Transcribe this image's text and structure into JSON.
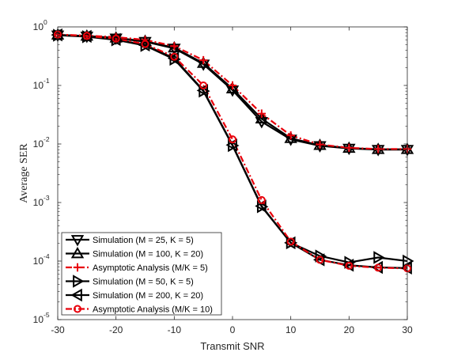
{
  "chart_data": {
    "type": "line",
    "xlabel": "Transmit SNR",
    "ylabel": "Average SER",
    "xlim": [
      -30,
      30
    ],
    "ylim": [
      1e-05,
      1
    ],
    "yscale": "log",
    "grid": false,
    "legend_position": "bottom-left",
    "x_ticks": [
      -30,
      -20,
      -10,
      0,
      10,
      20,
      30
    ],
    "x": [
      -30,
      -25,
      -20,
      -15,
      -10,
      -5,
      0,
      5,
      10,
      15,
      20,
      25,
      30
    ],
    "y_ticks": [
      {
        "value": 1e-05,
        "base": "10",
        "exp": "-5"
      },
      {
        "value": 0.0001,
        "base": "10",
        "exp": "-4"
      },
      {
        "value": 0.001,
        "base": "10",
        "exp": "-3"
      },
      {
        "value": 0.01,
        "base": "10",
        "exp": "-2"
      },
      {
        "value": 0.1,
        "base": "10",
        "exp": "-1"
      },
      {
        "value": 1,
        "base": "10",
        "exp": "0"
      }
    ],
    "series": [
      {
        "name": "Simulation (M = 25, K = 5)",
        "color": "#000000",
        "dash": "solid",
        "marker": "triangle-down",
        "values": [
          0.72,
          0.69,
          0.64,
          0.56,
          0.43,
          0.23,
          0.083,
          0.024,
          0.012,
          0.0093,
          0.0084,
          0.008,
          0.008
        ]
      },
      {
        "name": "Simulation (M = 100, K = 20)",
        "color": "#000000",
        "dash": "solid",
        "marker": "triangle-up",
        "values": [
          0.73,
          0.7,
          0.65,
          0.57,
          0.44,
          0.24,
          0.088,
          0.027,
          0.0125,
          0.0095,
          0.0085,
          0.0081,
          0.0081
        ]
      },
      {
        "name": "Asymptotic Analysis (M/K = 5)",
        "color": "#e8000b",
        "dash": "dashdot",
        "marker": "plus",
        "values": [
          0.74,
          0.71,
          0.67,
          0.6,
          0.47,
          0.27,
          0.1,
          0.033,
          0.014,
          0.0098,
          0.0086,
          0.0082,
          0.0082
        ]
      },
      {
        "name": "Simulation (M = 50, K = 5)",
        "color": "#000000",
        "dash": "solid",
        "marker": "triangle-right",
        "values": [
          0.72,
          0.68,
          0.6,
          0.48,
          0.28,
          0.08,
          0.0094,
          0.00085,
          0.000205,
          0.000122,
          9.5e-05,
          0.000115,
          0.0001
        ]
      },
      {
        "name": "Simulation (M = 200, K = 20)",
        "color": "#000000",
        "dash": "solid",
        "marker": "triangle-left",
        "values": [
          0.73,
          0.69,
          0.61,
          0.49,
          0.29,
          0.082,
          0.0096,
          0.00087,
          0.000205,
          0.000105,
          8.5e-05,
          7.8e-05,
          7.6e-05
        ]
      },
      {
        "name": "Asymptotic Analysis (M/K = 10)",
        "color": "#e8000b",
        "dash": "dashdot",
        "marker": "circle",
        "values": [
          0.74,
          0.7,
          0.63,
          0.51,
          0.31,
          0.1,
          0.012,
          0.0011,
          0.000215,
          0.000105,
          8.3e-05,
          7.7e-05,
          7.5e-05
        ]
      }
    ]
  }
}
